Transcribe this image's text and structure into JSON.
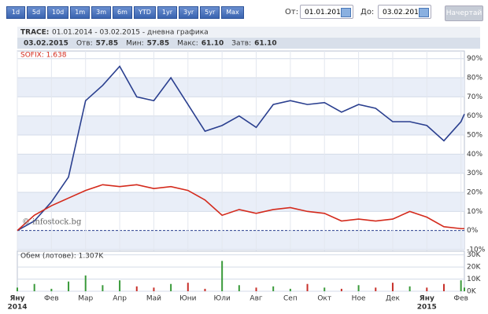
{
  "toolbar": {
    "buttons": [
      "1d",
      "5d",
      "10d",
      "1m",
      "3m",
      "6m",
      "YTD",
      "1yr",
      "3yr",
      "5yr",
      "Max"
    ],
    "from_label": "От:",
    "from_value": "01.01.2014",
    "to_label": "До:",
    "to_value": "03.02.2015",
    "submit": "Начертай"
  },
  "header": {
    "symbol": "TRACE:",
    "title": "01.01.2014 - 03.02.2015 - дневна графика",
    "info": [
      [
        "03.02.2015",
        ""
      ],
      [
        "Отв:",
        "57.85"
      ],
      [
        "Мин:",
        "57.85"
      ],
      [
        "Макс:",
        "61.10"
      ],
      [
        "Затв:",
        "61.10"
      ]
    ]
  },
  "chart_data": [
    {
      "type": "line",
      "annotation": "SOFIX: 1.638",
      "watermark": "© infostock.bg",
      "x": [
        0,
        0.5,
        1,
        1.5,
        2,
        2.5,
        3,
        3.5,
        4,
        4.5,
        5,
        5.5,
        6,
        6.5,
        7,
        7.5,
        8,
        8.5,
        9,
        9.5,
        10,
        10.5,
        11,
        11.5,
        12,
        12.5,
        13,
        13.1
      ],
      "series": [
        {
          "color": "#2a3f8f",
          "values": [
            0,
            5,
            15,
            28,
            68,
            76,
            86,
            70,
            68,
            80,
            66,
            52,
            55,
            60,
            54,
            66,
            68,
            66,
            67,
            62,
            66,
            64,
            57,
            57,
            55,
            47,
            57,
            61
          ]
        },
        {
          "color": "#d42a1c",
          "values": [
            0,
            8,
            13,
            17,
            21,
            24,
            23,
            24,
            22,
            23,
            21,
            16,
            8,
            11,
            9,
            11,
            12,
            10,
            9,
            5,
            6,
            5,
            6,
            10,
            7,
            2,
            1,
            1
          ]
        }
      ],
      "xlim": [
        0,
        13.1
      ],
      "xticks": [
        {
          "value": 0,
          "label": "Яну"
        },
        {
          "value": 1,
          "label": "Фев"
        },
        {
          "value": 2,
          "label": "Мар"
        },
        {
          "value": 3,
          "label": "Апр"
        },
        {
          "value": 4,
          "label": "Май"
        },
        {
          "value": 5,
          "label": "Юни"
        },
        {
          "value": 6,
          "label": "Юли"
        },
        {
          "value": 7,
          "label": "Авг"
        },
        {
          "value": 8,
          "label": "Сеп"
        },
        {
          "value": 9,
          "label": "Окт"
        },
        {
          "value": 10,
          "label": "Ное"
        },
        {
          "value": 11,
          "label": "Дек"
        },
        {
          "value": 12,
          "label": "Яну"
        },
        {
          "value": 13,
          "label": "Фев"
        }
      ],
      "year_labels": [
        {
          "value": 0,
          "label": "2014"
        },
        {
          "value": 12,
          "label": "2015"
        }
      ],
      "ylim": [
        -10,
        94
      ],
      "yticks": [
        {
          "value": -10,
          "label": "-10%"
        },
        {
          "value": 0,
          "label": "0%"
        },
        {
          "value": 10,
          "label": "10%"
        },
        {
          "value": 20,
          "label": "20%"
        },
        {
          "value": 30,
          "label": "30%"
        },
        {
          "value": 40,
          "label": "40%"
        },
        {
          "value": 50,
          "label": "50%"
        },
        {
          "value": 60,
          "label": "60%"
        },
        {
          "value": 70,
          "label": "70%"
        },
        {
          "value": 80,
          "label": "80%"
        },
        {
          "value": 90,
          "label": "90%"
        }
      ],
      "grid": true
    },
    {
      "type": "bar",
      "annotation": "Обем (лотове): 1.307K",
      "up_color": "#3a9a3a",
      "down_color": "#c8302a",
      "x": [
        0,
        0.5,
        1,
        1.5,
        2,
        2.5,
        3,
        3.5,
        4,
        4.5,
        5,
        5.5,
        6,
        6.5,
        7,
        7.5,
        8,
        8.5,
        9,
        9.5,
        10,
        10.5,
        11,
        11.5,
        12,
        12.5,
        13,
        13.1
      ],
      "values": [
        3000,
        6000,
        2000,
        8000,
        13000,
        5000,
        9000,
        4000,
        3000,
        6000,
        7000,
        2000,
        25000,
        5000,
        3000,
        4000,
        2000,
        6000,
        3000,
        2000,
        5000,
        3000,
        7000,
        4000,
        3000,
        6000,
        9000,
        3000
      ],
      "xlim": [
        0,
        13.1
      ],
      "ylim": [
        0,
        33000
      ],
      "yticks": [
        {
          "value": 0,
          "label": "0K"
        },
        {
          "value": 10000,
          "label": "10K"
        },
        {
          "value": 20000,
          "label": "20K"
        },
        {
          "value": 30000,
          "label": "30K"
        }
      ]
    }
  ]
}
